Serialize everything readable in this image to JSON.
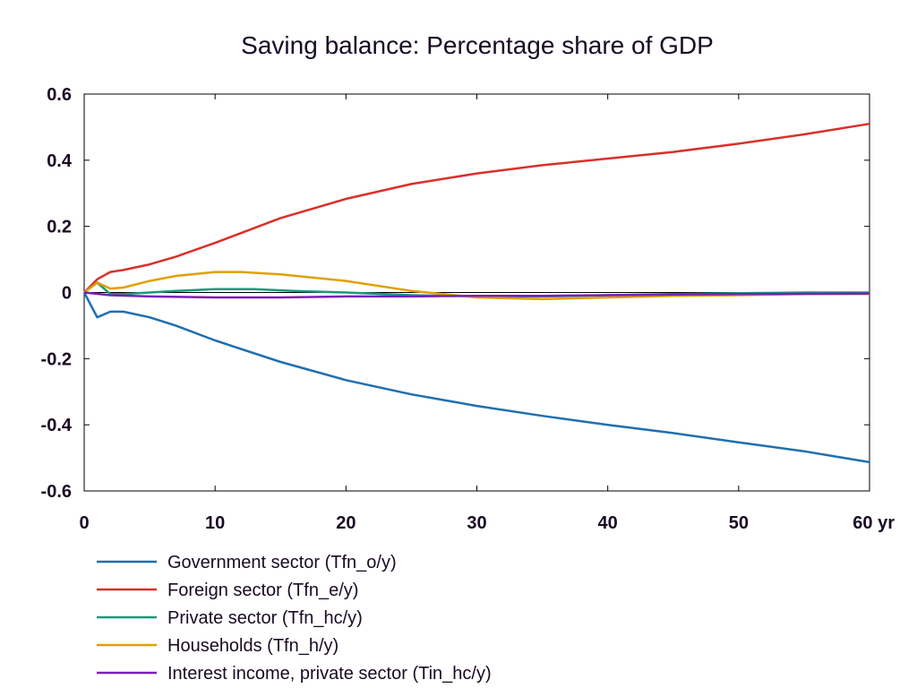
{
  "chart_data": {
    "type": "line",
    "title": "Saving balance: Percentage share of GDP",
    "xlabel": "",
    "ylabel": "",
    "x_unit": "yr",
    "xlim": [
      0,
      60
    ],
    "ylim": [
      -0.6,
      0.6
    ],
    "x_ticks": [
      0,
      10,
      20,
      30,
      40,
      50,
      60
    ],
    "x_tick_labels": [
      "0",
      "10",
      "20",
      "30",
      "40",
      "50",
      "60 yr"
    ],
    "y_ticks": [
      0.6,
      0.4,
      0.2,
      0,
      -0.2,
      -0.4,
      -0.6
    ],
    "y_tick_labels": [
      "0.6",
      "0.4",
      "0.2",
      "0",
      "-0.2",
      "-0.4",
      "-0.6"
    ],
    "grid": false,
    "legend_position": "bottom-left",
    "series": [
      {
        "name": "Government sector (Tfn_o/y)",
        "color": "#1f6fb0",
        "points": [
          [
            0,
            0
          ],
          [
            1,
            -0.075
          ],
          [
            2,
            -0.058
          ],
          [
            3,
            -0.058
          ],
          [
            5,
            -0.075
          ],
          [
            7,
            -0.1
          ],
          [
            10,
            -0.145
          ],
          [
            15,
            -0.21
          ],
          [
            20,
            -0.265
          ],
          [
            25,
            -0.308
          ],
          [
            30,
            -0.343
          ],
          [
            35,
            -0.373
          ],
          [
            40,
            -0.4
          ],
          [
            45,
            -0.425
          ],
          [
            50,
            -0.453
          ],
          [
            55,
            -0.48
          ],
          [
            60,
            -0.513
          ]
        ]
      },
      {
        "name": "Foreign sector (Tfn_e/y)",
        "color": "#d9302a",
        "points": [
          [
            0,
            0
          ],
          [
            1,
            0.04
          ],
          [
            2,
            0.062
          ],
          [
            3,
            0.068
          ],
          [
            5,
            0.085
          ],
          [
            7,
            0.108
          ],
          [
            10,
            0.15
          ],
          [
            15,
            0.225
          ],
          [
            20,
            0.283
          ],
          [
            25,
            0.328
          ],
          [
            30,
            0.36
          ],
          [
            35,
            0.385
          ],
          [
            40,
            0.405
          ],
          [
            45,
            0.425
          ],
          [
            50,
            0.45
          ],
          [
            55,
            0.478
          ],
          [
            60,
            0.51
          ]
        ]
      },
      {
        "name": "Private sector (Tfn_hc/y)",
        "color": "#179a7a",
        "points": [
          [
            0,
            0
          ],
          [
            1,
            0.03
          ],
          [
            2,
            -0.005
          ],
          [
            3,
            -0.005
          ],
          [
            5,
            0
          ],
          [
            7,
            0.005
          ],
          [
            10,
            0.01
          ],
          [
            13,
            0.01
          ],
          [
            16,
            0.005
          ],
          [
            20,
            0
          ],
          [
            25,
            -0.008
          ],
          [
            30,
            -0.012
          ],
          [
            35,
            -0.012
          ],
          [
            40,
            -0.008
          ],
          [
            45,
            -0.005
          ],
          [
            50,
            -0.002
          ],
          [
            55,
            0
          ],
          [
            60,
            0
          ]
        ]
      },
      {
        "name": "Households (Tfn_h/y)",
        "color": "#e0a000",
        "points": [
          [
            0,
            0
          ],
          [
            1,
            0.03
          ],
          [
            2,
            0.012
          ],
          [
            3,
            0.015
          ],
          [
            5,
            0.035
          ],
          [
            7,
            0.05
          ],
          [
            10,
            0.062
          ],
          [
            12,
            0.062
          ],
          [
            15,
            0.055
          ],
          [
            20,
            0.035
          ],
          [
            25,
            0.005
          ],
          [
            30,
            -0.015
          ],
          [
            35,
            -0.02
          ],
          [
            40,
            -0.015
          ],
          [
            45,
            -0.01
          ],
          [
            50,
            -0.008
          ],
          [
            55,
            -0.005
          ],
          [
            60,
            -0.005
          ]
        ]
      },
      {
        "name": "Interest income, private sector (Tin_hc/y)",
        "color": "#7a1fb8",
        "points": [
          [
            0,
            0
          ],
          [
            2,
            -0.008
          ],
          [
            5,
            -0.012
          ],
          [
            10,
            -0.015
          ],
          [
            15,
            -0.015
          ],
          [
            20,
            -0.012
          ],
          [
            25,
            -0.012
          ],
          [
            30,
            -0.01
          ],
          [
            35,
            -0.01
          ],
          [
            40,
            -0.008
          ],
          [
            45,
            -0.006
          ],
          [
            50,
            -0.005
          ],
          [
            55,
            -0.004
          ],
          [
            60,
            -0.003
          ]
        ]
      }
    ]
  }
}
